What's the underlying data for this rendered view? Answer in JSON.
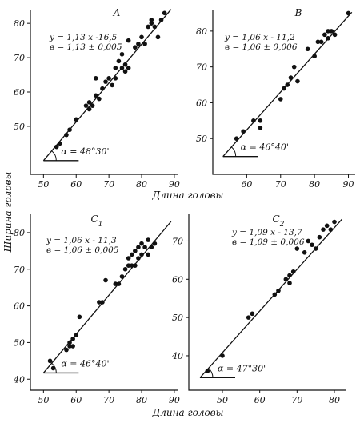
{
  "axis_titles": {
    "x": "Длина головы",
    "y": "Ширина головы"
  },
  "chart_data": [
    {
      "type": "scatter",
      "title": "A",
      "equation": "y = 1,13 x -16,5",
      "b_text": "в = 1,13 ± 0,005",
      "angle_label": "α = 48°30'",
      "x_ticks": [
        50,
        60,
        70,
        80,
        90
      ],
      "y_ticks": [
        50,
        60,
        70,
        80
      ],
      "line": {
        "slope": 1.13,
        "intercept": -16.5,
        "x_range": [
          50,
          89
        ]
      },
      "points": [
        [
          54,
          44
        ],
        [
          55,
          45
        ],
        [
          57,
          47.5
        ],
        [
          58,
          49
        ],
        [
          60,
          52
        ],
        [
          63,
          56
        ],
        [
          64,
          57
        ],
        [
          64,
          55
        ],
        [
          65,
          56
        ],
        [
          66,
          59
        ],
        [
          66,
          64
        ],
        [
          67,
          58
        ],
        [
          68,
          61
        ],
        [
          69,
          63
        ],
        [
          70,
          64
        ],
        [
          71,
          62
        ],
        [
          72,
          64
        ],
        [
          72,
          67
        ],
        [
          73,
          69
        ],
        [
          74,
          71
        ],
        [
          74,
          67
        ],
        [
          75,
          68
        ],
        [
          75,
          66
        ],
        [
          76,
          67
        ],
        [
          76,
          75
        ],
        [
          78,
          73
        ],
        [
          79,
          74
        ],
        [
          80,
          76
        ],
        [
          81,
          74
        ],
        [
          82,
          79
        ],
        [
          83,
          80
        ],
        [
          83,
          81
        ],
        [
          84,
          79
        ],
        [
          85,
          76
        ],
        [
          86,
          81
        ],
        [
          87,
          83
        ]
      ]
    },
    {
      "type": "scatter",
      "title": "B",
      "equation": "y = 1,06 x - 11,2",
      "b_text": "в = 1,06 ± 0,006",
      "angle_label": "α = 46°40'",
      "x_ticks": [
        60,
        70,
        80,
        90
      ],
      "y_ticks": [
        50,
        60,
        70,
        80
      ],
      "line": {
        "slope": 1.06,
        "intercept": -11.2,
        "x_range": [
          53,
          91
        ]
      },
      "points": [
        [
          57,
          50
        ],
        [
          59,
          52
        ],
        [
          62,
          55
        ],
        [
          64,
          55
        ],
        [
          64,
          53
        ],
        [
          70,
          61
        ],
        [
          71,
          64
        ],
        [
          72,
          65
        ],
        [
          73,
          67
        ],
        [
          74,
          70
        ],
        [
          75,
          66
        ],
        [
          78,
          75
        ],
        [
          80,
          73
        ],
        [
          81,
          77
        ],
        [
          82,
          77
        ],
        [
          83,
          79
        ],
        [
          84,
          80
        ],
        [
          84,
          78
        ],
        [
          85,
          80
        ],
        [
          86,
          79
        ],
        [
          90,
          85
        ]
      ]
    },
    {
      "type": "scatter",
      "title": "C1",
      "equation": "y = 1,06 x - 11,3",
      "b_text": "в = 1,06 ± 0,005",
      "angle_label": "α = 46°40'",
      "x_ticks": [
        50,
        60,
        70,
        80,
        90
      ],
      "y_ticks": [
        40,
        50,
        60,
        70,
        80
      ],
      "line": {
        "slope": 1.06,
        "intercept": -11.3,
        "x_range": [
          50,
          89
        ]
      },
      "points": [
        [
          52,
          45
        ],
        [
          53,
          43
        ],
        [
          57,
          48
        ],
        [
          58,
          49
        ],
        [
          58,
          50
        ],
        [
          59,
          51
        ],
        [
          59,
          49
        ],
        [
          60,
          52
        ],
        [
          61,
          57
        ],
        [
          67,
          61
        ],
        [
          68,
          61
        ],
        [
          69,
          67
        ],
        [
          72,
          66
        ],
        [
          73,
          66
        ],
        [
          74,
          68
        ],
        [
          75,
          70
        ],
        [
          76,
          71
        ],
        [
          76,
          73
        ],
        [
          77,
          74
        ],
        [
          77,
          71
        ],
        [
          78,
          75
        ],
        [
          78,
          71
        ],
        [
          79,
          76
        ],
        [
          79,
          73
        ],
        [
          80,
          77
        ],
        [
          80,
          74
        ],
        [
          81,
          76
        ],
        [
          82,
          78
        ],
        [
          82,
          74
        ],
        [
          83,
          76
        ],
        [
          84,
          77
        ]
      ]
    },
    {
      "type": "scatter",
      "title": "C2",
      "equation": "y = 1,09 x - 13,7",
      "b_text": "в = 1,09 ± 0,006",
      "angle_label": "α = 47°30'",
      "x_ticks": [
        50,
        60,
        70,
        80
      ],
      "y_ticks": [
        40,
        50,
        60,
        70
      ],
      "line": {
        "slope": 1.09,
        "intercept": -13.7,
        "x_range": [
          44,
          82
        ]
      },
      "points": [
        [
          46,
          36
        ],
        [
          50,
          40
        ],
        [
          57,
          50
        ],
        [
          58,
          51
        ],
        [
          64,
          56
        ],
        [
          65,
          57
        ],
        [
          67,
          60
        ],
        [
          68,
          61
        ],
        [
          68,
          59
        ],
        [
          69,
          62
        ],
        [
          70,
          68
        ],
        [
          72,
          67
        ],
        [
          73,
          70
        ],
        [
          74,
          69
        ],
        [
          75,
          68
        ],
        [
          76,
          71
        ],
        [
          77,
          73
        ],
        [
          78,
          74
        ],
        [
          79,
          73
        ],
        [
          80,
          75
        ]
      ]
    }
  ]
}
